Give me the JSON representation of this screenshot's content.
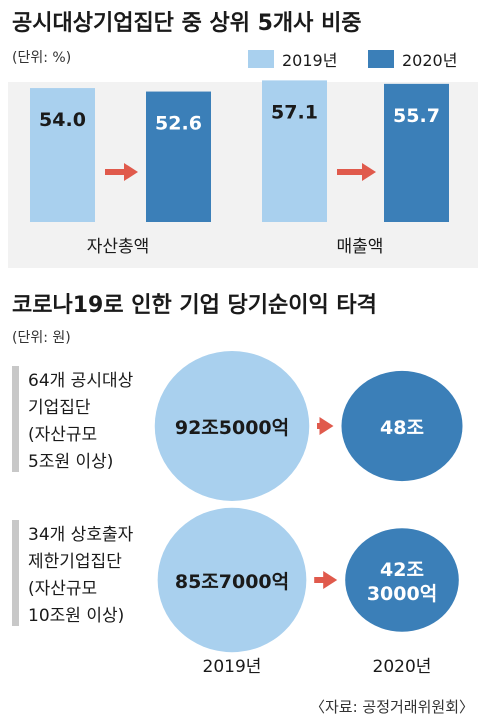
{
  "colors": {
    "light": "#a9d0ee",
    "dark": "#3b7fb8",
    "arrow": "#e05a4c",
    "panel": "#f2f2f2",
    "sidebar": "#c8c8c8",
    "text": "#1a1a1a"
  },
  "section1": {
    "title": "공시대상기업집단 중 상위 5개사 비중",
    "unit": "(단위: %)",
    "legend": [
      "2019년",
      "2020년"
    ]
  },
  "section2": {
    "title": "코로나19로 인한 기업 당기순이익 타격",
    "unit": "(단위: 원)",
    "col_labels": [
      "2019년",
      "2020년"
    ]
  },
  "source": "〈자료: 공정거래위원회〉",
  "chart_data": [
    {
      "type": "bar",
      "title": "공시대상기업집단 중 상위 5개사 비중",
      "unit": "(단위: %)",
      "categories": [
        "자산총액",
        "매출액"
      ],
      "series": [
        {
          "name": "2019년",
          "values": [
            54.0,
            57.1
          ],
          "labels": [
            "54.0",
            "57.1"
          ]
        },
        {
          "name": "2020년",
          "values": [
            52.6,
            55.7
          ],
          "labels": [
            "52.6",
            "55.7"
          ]
        }
      ],
      "legend": "top-right",
      "grid": false
    },
    {
      "type": "bubble",
      "title": "코로나19로 인한 기업 당기순이익 타격",
      "unit": "(단위: 원)",
      "categories": [
        [
          "64개 공시대상",
          "기업집단",
          "(자산규모",
          "5조원 이상)"
        ],
        [
          "34개 상호출자",
          "제한기업집단",
          "(자산규모",
          "10조원 이상)"
        ]
      ],
      "x": [
        "2019년",
        "2020년"
      ],
      "values": [
        [
          925000,
          480000
        ],
        [
          857000,
          423000
        ]
      ],
      "labels": [
        [
          "92조5000억"
        ],
        [
          "48조"
        ],
        [
          "85조7000억"
        ],
        [
          "42조",
          "3000억"
        ]
      ]
    }
  ]
}
